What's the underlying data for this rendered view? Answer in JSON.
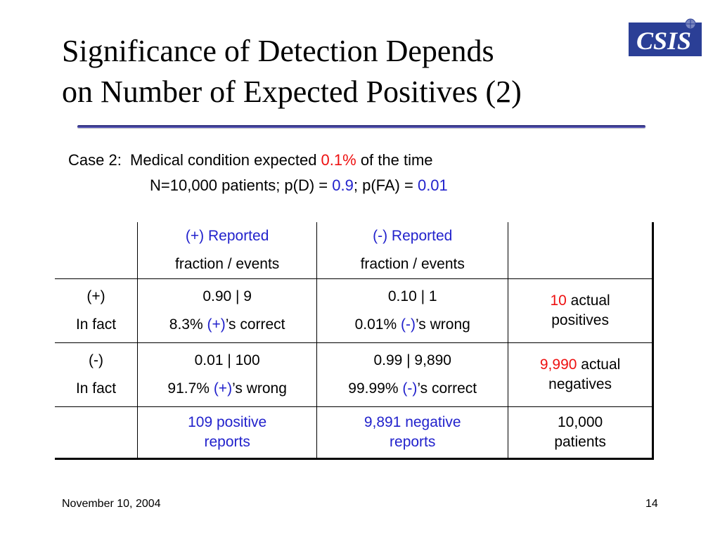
{
  "slide": {
    "title_line1": "Significance of Detection Depends",
    "title_line2": "on Number of Expected Positives (2)",
    "logo_text": "CSIS",
    "case_line": {
      "prefix": "Case 2:  Medical condition expected ",
      "percent": "0.1%",
      "suffix": " of the time"
    },
    "params_line": {
      "prefix": "N=10,000 patients; p(D) = ",
      "pd": "0.9",
      "middle": "; p(FA) = ",
      "pfa": "0.01"
    },
    "table": {
      "header": {
        "col2_line1": "(+) Reported",
        "col2_line2": "fraction / events",
        "col3_line1": "(-) Reported",
        "col3_line2": "fraction / events"
      },
      "row_pos": {
        "label_line1": "(+)",
        "label_line2": "In fact",
        "c2_line1": "0.90 | 9",
        "c2_pct": "8.3% ",
        "c2_sign": "(+)",
        "c2_tail": "’s correct",
        "c3_line1": "0.10 | 1",
        "c3_pct": "0.01% ",
        "c3_sign": "(-)",
        "c3_tail": "’s wrong",
        "summary_num": "10",
        "summary_word1": " actual",
        "summary_word2": "positives"
      },
      "row_neg": {
        "label_line1": "(-)",
        "label_line2": "In fact",
        "c2_line1": "0.01 | 100",
        "c2_pct": "91.7% ",
        "c2_sign": "(+)",
        "c2_tail": "’s wrong",
        "c3_line1": "0.99 | 9,890",
        "c3_pct": "99.99% ",
        "c3_sign": "(-)",
        "c3_tail": "’s correct",
        "summary_num": "9,990",
        "summary_word1": " actual",
        "summary_word2": "negatives"
      },
      "footer_row": {
        "c2_line1": "109 positive",
        "c2_line2": "reports",
        "c3_line1": "9,891 negative",
        "c3_line2": "reports",
        "c4_line1": "10,000",
        "c4_line2": "patients"
      }
    },
    "date": "November 10, 2004",
    "page_number": "14",
    "colors": {
      "highlight_red": "#ee1111",
      "highlight_blue": "#2222cc",
      "rule": "#1a1a66"
    }
  }
}
